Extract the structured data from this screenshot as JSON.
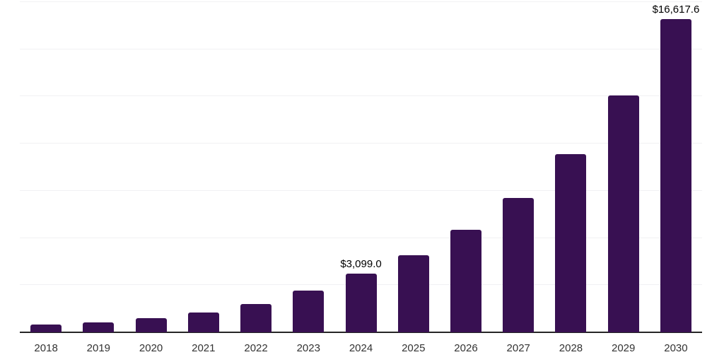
{
  "chart_data": {
    "type": "bar",
    "title": "",
    "xlabel": "",
    "ylabel": "",
    "categories": [
      "2018",
      "2019",
      "2020",
      "2021",
      "2022",
      "2023",
      "2024",
      "2025",
      "2026",
      "2027",
      "2028",
      "2029",
      "2030"
    ],
    "values": [
      420,
      540,
      750,
      1050,
      1500,
      2210,
      3099.0,
      4085,
      5430,
      7120,
      9440,
      12550,
      16617.6
    ],
    "data_labels": [
      "",
      "",
      "",
      "",
      "",
      "",
      "$3,099.0",
      "",
      "",
      "",
      "",
      "",
      "$16,617.6"
    ],
    "ylim": [
      0,
      17500
    ],
    "gridline_step": 2500,
    "grid": true,
    "legend_position": "none"
  },
  "style": {
    "bar_color": "#381052",
    "axis_line_color": "#262626",
    "gridline_color": "#f1f1f3",
    "tick_label_color": "#333333",
    "data_label_color": "#000000",
    "background_color": "#ffffff"
  }
}
